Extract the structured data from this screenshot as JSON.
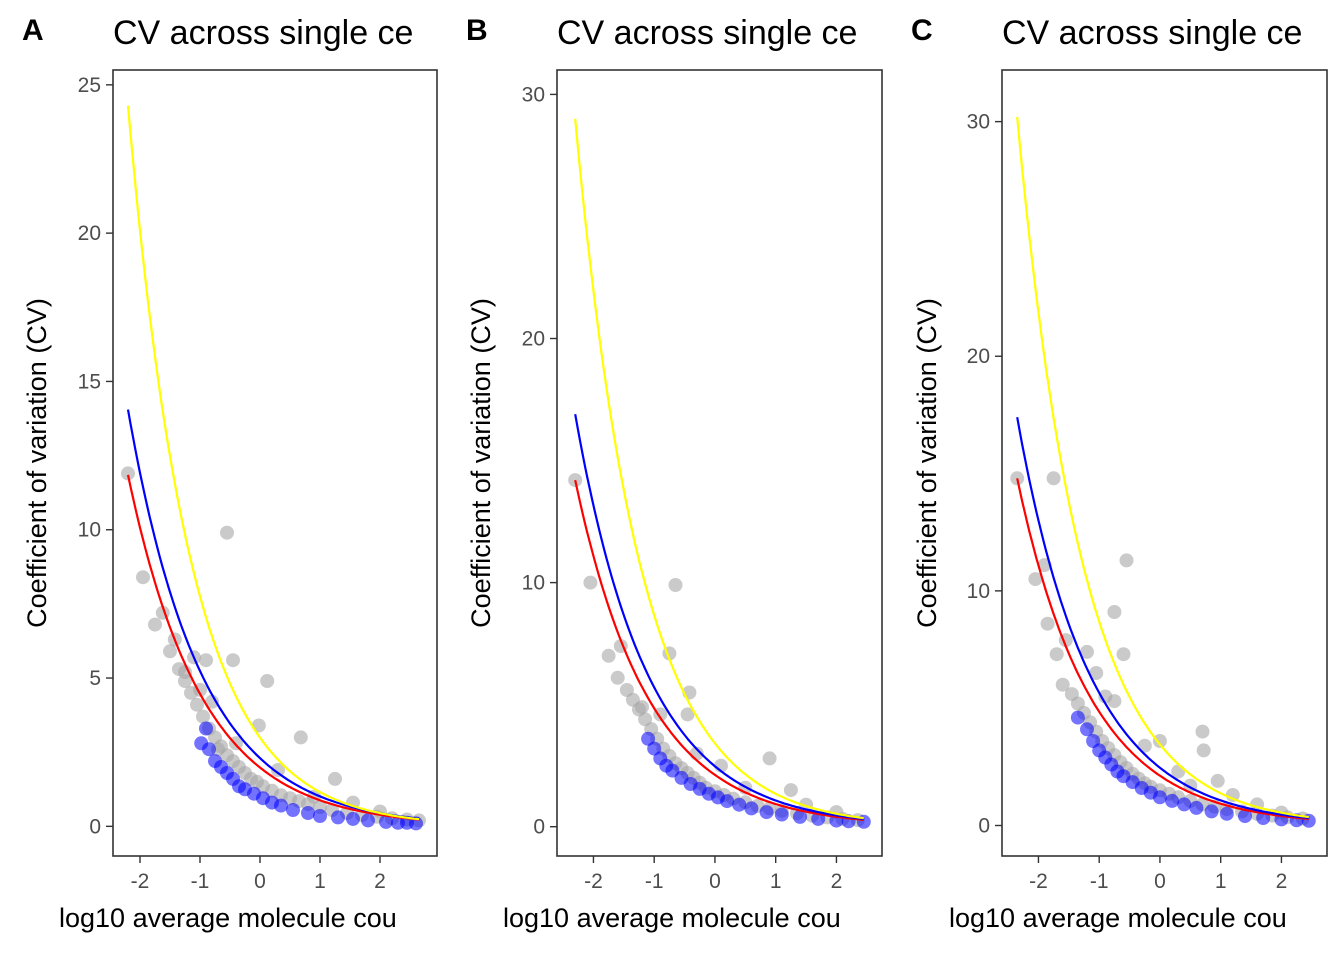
{
  "colors": {
    "background": "#ffffff",
    "points_gray": "#a6a6a6",
    "points_blue": "#0000ff",
    "curve_red": "#ff0000",
    "curve_blue": "#0000ff",
    "curve_yellow": "#ffff00",
    "frame": "#333333"
  },
  "chart_data": [
    {
      "type": "scatter",
      "panel_label": "A",
      "title": "CV across single ce",
      "xlabel": "log10 average molecule cou",
      "ylabel": "Coefficient of variation (CV)",
      "xlim": [
        -2.45,
        2.95
      ],
      "ylim": [
        -1.0,
        25.5
      ],
      "xticks": [
        -2,
        -1,
        0,
        1,
        2
      ],
      "xtick_labels": [
        "-2",
        "-1",
        "0",
        "1",
        "2"
      ],
      "yticks": [
        0,
        5,
        10,
        15,
        20,
        25
      ],
      "ytick_labels": [
        "0",
        "5",
        "10",
        "15",
        "20",
        "25"
      ],
      "grid": false,
      "legend": "none",
      "gray_points": [
        [
          -2.2,
          11.9
        ],
        [
          -1.95,
          8.4
        ],
        [
          -1.75,
          6.8
        ],
        [
          -1.62,
          7.2
        ],
        [
          -1.5,
          5.9
        ],
        [
          -1.42,
          6.3
        ],
        [
          -1.35,
          5.3
        ],
        [
          -1.25,
          4.9
        ],
        [
          -1.15,
          4.5
        ],
        [
          -1.05,
          4.1
        ],
        [
          -0.95,
          3.7
        ],
        [
          -0.85,
          3.3
        ],
        [
          -0.75,
          3.0
        ],
        [
          -0.65,
          2.7
        ],
        [
          -0.55,
          2.4
        ],
        [
          -0.45,
          2.2
        ],
        [
          -0.35,
          2.0
        ],
        [
          -0.25,
          1.8
        ],
        [
          -0.15,
          1.6
        ],
        [
          -0.05,
          1.5
        ],
        [
          0.05,
          1.35
        ],
        [
          0.2,
          1.2
        ],
        [
          0.35,
          1.05
        ],
        [
          0.5,
          0.95
        ],
        [
          0.65,
          0.85
        ],
        [
          0.8,
          0.75
        ],
        [
          1.0,
          0.65
        ],
        [
          1.2,
          0.55
        ],
        [
          1.45,
          0.45
        ],
        [
          1.7,
          0.38
        ],
        [
          1.95,
          0.32
        ],
        [
          2.2,
          0.27
        ],
        [
          2.45,
          0.23
        ],
        [
          2.65,
          0.2
        ],
        [
          -0.9,
          5.6
        ],
        [
          -1.1,
          5.7
        ],
        [
          -1.25,
          5.2
        ],
        [
          -1.0,
          4.6
        ],
        [
          -0.8,
          4.2
        ],
        [
          -0.55,
          9.9
        ],
        [
          -0.45,
          5.6
        ],
        [
          0.12,
          4.9
        ],
        [
          -0.02,
          3.4
        ],
        [
          0.68,
          3.0
        ],
        [
          1.25,
          1.6
        ],
        [
          -0.7,
          2.6
        ],
        [
          -0.4,
          2.8
        ],
        [
          0.3,
          1.9
        ],
        [
          0.9,
          1.0
        ],
        [
          1.55,
          0.8
        ],
        [
          2.0,
          0.5
        ]
      ],
      "blue_points": [
        [
          -0.98,
          2.8
        ],
        [
          -0.9,
          3.3
        ],
        [
          -0.85,
          2.6
        ],
        [
          -0.75,
          2.2
        ],
        [
          -0.65,
          2.0
        ],
        [
          -0.55,
          1.8
        ],
        [
          -0.45,
          1.6
        ],
        [
          -0.35,
          1.35
        ],
        [
          -0.25,
          1.25
        ],
        [
          -0.1,
          1.1
        ],
        [
          0.05,
          0.95
        ],
        [
          0.2,
          0.8
        ],
        [
          0.35,
          0.7
        ],
        [
          0.55,
          0.55
        ],
        [
          0.8,
          0.45
        ],
        [
          1.0,
          0.35
        ],
        [
          1.3,
          0.3
        ],
        [
          1.55,
          0.25
        ],
        [
          1.8,
          0.2
        ],
        [
          2.1,
          0.15
        ],
        [
          2.3,
          0.12
        ],
        [
          2.45,
          0.12
        ],
        [
          2.6,
          0.1
        ]
      ],
      "curves": [
        {
          "color": "#ff0000",
          "x_range": [
            -2.2,
            2.65
          ],
          "y_start": 11.85,
          "y_end": 0.23
        },
        {
          "color": "#0000ff",
          "x_range": [
            -2.2,
            2.65
          ],
          "y_start": 14.05,
          "y_end": 0.26
        },
        {
          "color": "#ffff00",
          "x_range": [
            -2.2,
            2.65
          ],
          "y_start": 24.3,
          "y_end": 0.24
        }
      ]
    },
    {
      "type": "scatter",
      "panel_label": "B",
      "title": "CV across single ce",
      "xlabel": "log10 average molecule cou",
      "ylabel": "Coefficient of variation (CV)",
      "xlim": [
        -2.6,
        2.75
      ],
      "ylim": [
        -1.2,
        31.0
      ],
      "xticks": [
        -2,
        -1,
        0,
        1,
        2
      ],
      "xtick_labels": [
        "-2",
        "-1",
        "0",
        "1",
        "2"
      ],
      "yticks": [
        0,
        10,
        20,
        30
      ],
      "ytick_labels": [
        "0",
        "10",
        "20",
        "30"
      ],
      "grid": false,
      "legend": "none",
      "gray_points": [
        [
          -2.3,
          14.2
        ],
        [
          -2.05,
          10.0
        ],
        [
          -1.75,
          7.0
        ],
        [
          -1.55,
          7.4
        ],
        [
          -1.6,
          6.1
        ],
        [
          -1.45,
          5.6
        ],
        [
          -1.35,
          5.2
        ],
        [
          -1.25,
          4.8
        ],
        [
          -1.15,
          4.4
        ],
        [
          -1.05,
          4.0
        ],
        [
          -0.95,
          3.6
        ],
        [
          -0.85,
          3.2
        ],
        [
          -0.75,
          2.9
        ],
        [
          -0.65,
          2.6
        ],
        [
          -0.55,
          2.4
        ],
        [
          -0.45,
          2.2
        ],
        [
          -0.35,
          2.0
        ],
        [
          -0.25,
          1.8
        ],
        [
          -0.15,
          1.6
        ],
        [
          0.0,
          1.45
        ],
        [
          0.15,
          1.3
        ],
        [
          0.3,
          1.15
        ],
        [
          0.5,
          1.0
        ],
        [
          0.7,
          0.85
        ],
        [
          0.9,
          0.75
        ],
        [
          1.1,
          0.65
        ],
        [
          1.35,
          0.55
        ],
        [
          1.6,
          0.45
        ],
        [
          1.85,
          0.38
        ],
        [
          2.1,
          0.32
        ],
        [
          2.35,
          0.27
        ],
        [
          -0.65,
          9.9
        ],
        [
          -0.75,
          7.1
        ],
        [
          -0.9,
          4.6
        ],
        [
          -0.42,
          5.5
        ],
        [
          -0.45,
          4.6
        ],
        [
          -1.2,
          4.9
        ],
        [
          0.1,
          2.5
        ],
        [
          0.9,
          2.8
        ],
        [
          1.25,
          1.5
        ],
        [
          1.5,
          0.9
        ],
        [
          -0.3,
          3.0
        ],
        [
          0.5,
          1.6
        ],
        [
          2.0,
          0.6
        ]
      ],
      "blue_points": [
        [
          -1.1,
          3.6
        ],
        [
          -1.0,
          3.2
        ],
        [
          -0.9,
          2.8
        ],
        [
          -0.8,
          2.5
        ],
        [
          -0.7,
          2.3
        ],
        [
          -0.55,
          2.0
        ],
        [
          -0.4,
          1.75
        ],
        [
          -0.25,
          1.55
        ],
        [
          -0.1,
          1.35
        ],
        [
          0.05,
          1.2
        ],
        [
          0.2,
          1.05
        ],
        [
          0.4,
          0.9
        ],
        [
          0.6,
          0.75
        ],
        [
          0.85,
          0.6
        ],
        [
          1.1,
          0.5
        ],
        [
          1.4,
          0.4
        ],
        [
          1.7,
          0.32
        ],
        [
          2.0,
          0.25
        ],
        [
          2.2,
          0.22
        ],
        [
          2.45,
          0.2
        ]
      ],
      "curves": [
        {
          "color": "#ff0000",
          "x_range": [
            -2.3,
            2.45
          ],
          "y_start": 14.2,
          "y_end": 0.28
        },
        {
          "color": "#0000ff",
          "x_range": [
            -2.3,
            2.45
          ],
          "y_start": 16.9,
          "y_end": 0.32
        },
        {
          "color": "#ffff00",
          "x_range": [
            -2.3,
            2.45
          ],
          "y_start": 29.0,
          "y_end": 0.35
        }
      ]
    },
    {
      "type": "scatter",
      "panel_label": "C",
      "title": "CV across single ce",
      "xlabel": "log10 average molecule cou",
      "ylabel": "Coefficient of variation (CV)",
      "xlim": [
        -2.6,
        2.75
      ],
      "ylim": [
        -1.3,
        32.2
      ],
      "xticks": [
        -2,
        -1,
        0,
        1,
        2
      ],
      "xtick_labels": [
        "-2",
        "-1",
        "0",
        "1",
        "2"
      ],
      "yticks": [
        0,
        10,
        20,
        30
      ],
      "ytick_labels": [
        "0",
        "10",
        "20",
        "30"
      ],
      "grid": false,
      "legend": "none",
      "gray_points": [
        [
          -2.35,
          14.8
        ],
        [
          -2.05,
          10.5
        ],
        [
          -1.9,
          11.1
        ],
        [
          -1.75,
          14.8
        ],
        [
          -1.85,
          8.6
        ],
        [
          -1.7,
          7.3
        ],
        [
          -1.55,
          7.9
        ],
        [
          -1.6,
          6.0
        ],
        [
          -1.45,
          5.6
        ],
        [
          -1.35,
          5.2
        ],
        [
          -1.25,
          4.8
        ],
        [
          -1.15,
          4.4
        ],
        [
          -1.05,
          4.0
        ],
        [
          -0.95,
          3.6
        ],
        [
          -0.85,
          3.3
        ],
        [
          -0.75,
          3.0
        ],
        [
          -0.65,
          2.7
        ],
        [
          -0.55,
          2.45
        ],
        [
          -0.45,
          2.2
        ],
        [
          -0.35,
          2.0
        ],
        [
          -0.25,
          1.8
        ],
        [
          -0.15,
          1.65
        ],
        [
          0.0,
          1.5
        ],
        [
          0.15,
          1.35
        ],
        [
          0.3,
          1.2
        ],
        [
          0.5,
          1.05
        ],
        [
          0.7,
          0.9
        ],
        [
          0.9,
          0.8
        ],
        [
          1.1,
          0.7
        ],
        [
          1.35,
          0.6
        ],
        [
          1.6,
          0.5
        ],
        [
          1.85,
          0.42
        ],
        [
          2.1,
          0.35
        ],
        [
          2.35,
          0.3
        ],
        [
          -0.55,
          11.3
        ],
        [
          -0.75,
          9.1
        ],
        [
          -0.6,
          7.3
        ],
        [
          -1.2,
          7.4
        ],
        [
          -1.05,
          6.5
        ],
        [
          -0.9,
          5.5
        ],
        [
          -0.75,
          5.3
        ],
        [
          0.0,
          3.6
        ],
        [
          -0.25,
          3.4
        ],
        [
          0.7,
          4.0
        ],
        [
          0.72,
          3.2
        ],
        [
          0.95,
          1.9
        ],
        [
          0.5,
          1.7
        ],
        [
          0.3,
          2.3
        ],
        [
          1.2,
          1.3
        ],
        [
          1.6,
          0.9
        ],
        [
          2.0,
          0.55
        ]
      ],
      "blue_points": [
        [
          -1.35,
          4.6
        ],
        [
          -1.2,
          4.1
        ],
        [
          -1.1,
          3.6
        ],
        [
          -1.0,
          3.2
        ],
        [
          -0.9,
          2.9
        ],
        [
          -0.8,
          2.6
        ],
        [
          -0.7,
          2.3
        ],
        [
          -0.6,
          2.1
        ],
        [
          -0.45,
          1.85
        ],
        [
          -0.3,
          1.6
        ],
        [
          -0.15,
          1.4
        ],
        [
          0.0,
          1.2
        ],
        [
          0.2,
          1.05
        ],
        [
          0.4,
          0.9
        ],
        [
          0.6,
          0.75
        ],
        [
          0.85,
          0.6
        ],
        [
          1.1,
          0.5
        ],
        [
          1.4,
          0.4
        ],
        [
          1.7,
          0.32
        ],
        [
          2.0,
          0.26
        ],
        [
          2.25,
          0.22
        ],
        [
          2.45,
          0.2
        ]
      ],
      "curves": [
        {
          "color": "#ff0000",
          "x_range": [
            -2.35,
            2.45
          ],
          "y_start": 14.8,
          "y_end": 0.28
        },
        {
          "color": "#0000ff",
          "x_range": [
            -2.35,
            2.45
          ],
          "y_start": 17.4,
          "y_end": 0.32
        },
        {
          "color": "#ffff00",
          "x_range": [
            -2.35,
            2.45
          ],
          "y_start": 30.2,
          "y_end": 0.36
        }
      ]
    }
  ]
}
